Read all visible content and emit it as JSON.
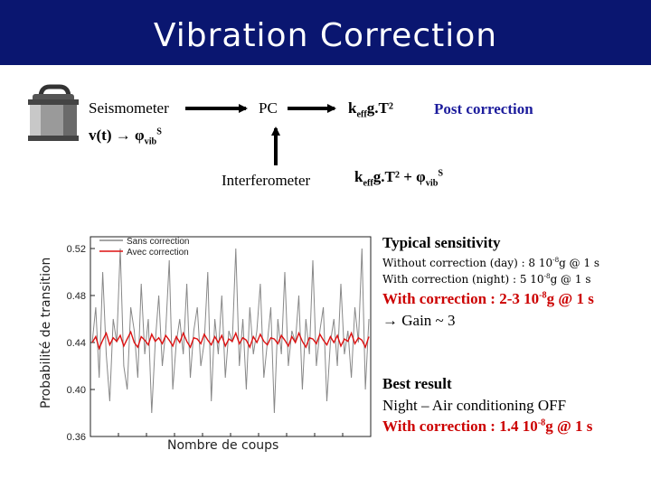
{
  "slide": {
    "title": "Vibration Correction"
  },
  "diagram": {
    "seismometer_label": "Seismometer",
    "pc_label": "PC",
    "interferometer_label": "Interferometer",
    "v_to_phi": {
      "left": "v(t) → φ",
      "sub": "vib",
      "sup": "S"
    },
    "keff_gT2": {
      "k": "k",
      "sub": "eff",
      "rest": "g.T²"
    },
    "keff_gT2_plus_phi": {
      "k": "k",
      "sub": "eff",
      "rest": "g.T² + φ",
      "sub2": "vib",
      "sup2": "S"
    },
    "post_correction": "Post correction"
  },
  "sensitivity": {
    "heading": "Typical sensitivity",
    "line1": {
      "pre": "Without correction (day) : 8 10",
      "sup": "-8",
      "post": "g @ 1 s"
    },
    "line2": {
      "pre": "With correction (night) : 5 10",
      "sup": "-8",
      "post": "g @ 1 s"
    },
    "line3": {
      "pre": "With correction : 2-3 10",
      "sup": "-8",
      "post": "g @ 1 s"
    },
    "gain": "→ Gain ~ 3"
  },
  "best_result": {
    "heading": "Best result",
    "line1": "Night – Air conditioning OFF",
    "line2": {
      "pre": "With correction : 1.4 10",
      "sup": "-8",
      "post": "g @ 1 s"
    }
  },
  "colors": {
    "title_bar": "#0a1670",
    "sans_correction": "#888888",
    "avec_correction": "#dd1111",
    "highlight": "#cc0000",
    "post_correction": "#1c1c9c"
  },
  "chart_data": {
    "type": "line",
    "xlabel": "Nombre de coups",
    "ylabel": "Probabilité de transition",
    "ylim": [
      0.36,
      0.53
    ],
    "yticks": [
      "0.36",
      "0.40",
      "0.44",
      "0.48",
      "0.52"
    ],
    "ytick_values": [
      0.36,
      0.4,
      0.44,
      0.48,
      0.52
    ],
    "legend_position": "top-left",
    "series": [
      {
        "name": "Sans correction",
        "values": [
          0.44,
          0.47,
          0.41,
          0.5,
          0.43,
          0.39,
          0.46,
          0.44,
          0.52,
          0.42,
          0.4,
          0.47,
          0.45,
          0.41,
          0.49,
          0.43,
          0.46,
          0.38,
          0.44,
          0.48,
          0.42,
          0.45,
          0.51,
          0.4,
          0.44,
          0.46,
          0.43,
          0.49,
          0.41,
          0.45,
          0.47,
          0.42,
          0.44,
          0.5,
          0.39,
          0.46,
          0.43,
          0.48,
          0.41,
          0.45,
          0.44,
          0.52,
          0.42,
          0.46,
          0.4,
          0.47,
          0.43,
          0.45,
          0.49,
          0.41,
          0.44,
          0.47,
          0.38,
          0.46,
          0.43,
          0.5,
          0.42,
          0.45,
          0.44,
          0.48,
          0.4,
          0.46,
          0.43,
          0.51,
          0.42,
          0.45,
          0.47,
          0.39,
          0.44,
          0.46,
          0.42,
          0.49,
          0.43,
          0.45,
          0.41,
          0.47,
          0.44,
          0.52,
          0.4,
          0.46
        ]
      },
      {
        "name": "Avec correction",
        "values": [
          0.44,
          0.445,
          0.435,
          0.442,
          0.448,
          0.438,
          0.444,
          0.441,
          0.446,
          0.437,
          0.443,
          0.449,
          0.44,
          0.436,
          0.445,
          0.442,
          0.438,
          0.447,
          0.441,
          0.444,
          0.439,
          0.446,
          0.442,
          0.437,
          0.445,
          0.44,
          0.448,
          0.441,
          0.436,
          0.444,
          0.443,
          0.439,
          0.447,
          0.442,
          0.438,
          0.445,
          0.44,
          0.446,
          0.437,
          0.443,
          0.441,
          0.448,
          0.439,
          0.444,
          0.442,
          0.436,
          0.445,
          0.44,
          0.447,
          0.441,
          0.438,
          0.444,
          0.443,
          0.439,
          0.446,
          0.442,
          0.437,
          0.445,
          0.44,
          0.448,
          0.441,
          0.436,
          0.444,
          0.443,
          0.439,
          0.447,
          0.442,
          0.438,
          0.445,
          0.44,
          0.446,
          0.437,
          0.443,
          0.441,
          0.448,
          0.439,
          0.444,
          0.442,
          0.436,
          0.445
        ]
      }
    ]
  }
}
